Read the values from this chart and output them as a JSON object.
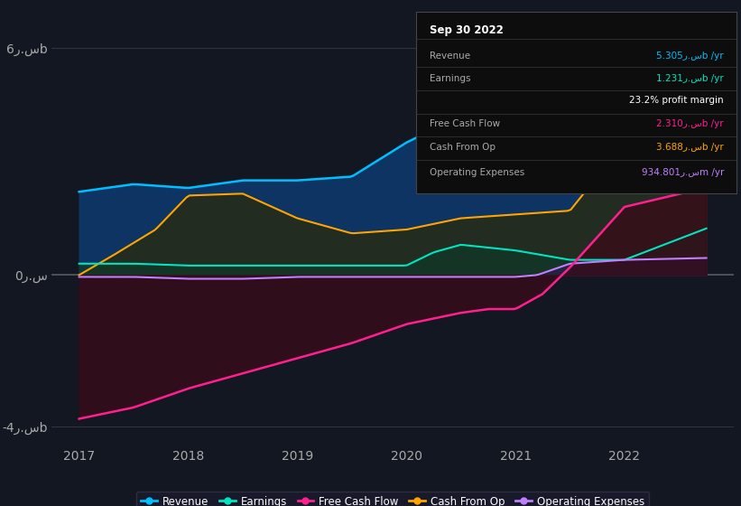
{
  "bg_color": "#131722",
  "plot_bg_color": "#131722",
  "title_box": "Sep 30 2022",
  "x_min": 2016.75,
  "x_max": 2023.0,
  "y_min": -4.5,
  "y_max": 7.0,
  "yticks": [
    -4,
    0,
    6
  ],
  "ytick_labels": [
    "-4ر.سb",
    "0ر.س",
    "6ر.سb"
  ],
  "xtick_years": [
    2017,
    2018,
    2019,
    2020,
    2021,
    2022
  ],
  "legend": [
    {
      "label": "Revenue",
      "color": "#00bfff"
    },
    {
      "label": "Earnings",
      "color": "#00e5c0"
    },
    {
      "label": "Free Cash Flow",
      "color": "#ff2090"
    },
    {
      "label": "Cash From Op",
      "color": "#ffa500"
    },
    {
      "label": "Operating Expenses",
      "color": "#bf7fff"
    }
  ],
  "line_colors": {
    "revenue": "#00bfff",
    "earnings": "#00e5c0",
    "free_cash_flow": "#ff2090",
    "cash_from_op": "#ffa500",
    "operating_expenses": "#bf7fff"
  },
  "fill_colors": {
    "revenue": "#0d3a6e",
    "earnings": "#0d3a2a",
    "free_cash_flow": "#3a0a18",
    "cash_from_op": "#2a2a0a",
    "operating_expenses": "#2a1a4a"
  },
  "info_rows": [
    {
      "label": "Revenue",
      "value": "5.305ر.سb /yr",
      "color": "#00bfff"
    },
    {
      "label": "Earnings",
      "value": "1.231ر.سb /yr",
      "color": "#00e5c0"
    },
    {
      "label": "",
      "value": "23.2% profit margin",
      "color": "#ffffff"
    },
    {
      "label": "Free Cash Flow",
      "value": "2.310ر.سb /yr",
      "color": "#ff2090"
    },
    {
      "label": "Cash From Op",
      "value": "3.688ر.سb /yr",
      "color": "#ffa500"
    },
    {
      "label": "Operating Expenses",
      "value": "934.801ر.سm /yr",
      "color": "#bf7fff"
    }
  ]
}
